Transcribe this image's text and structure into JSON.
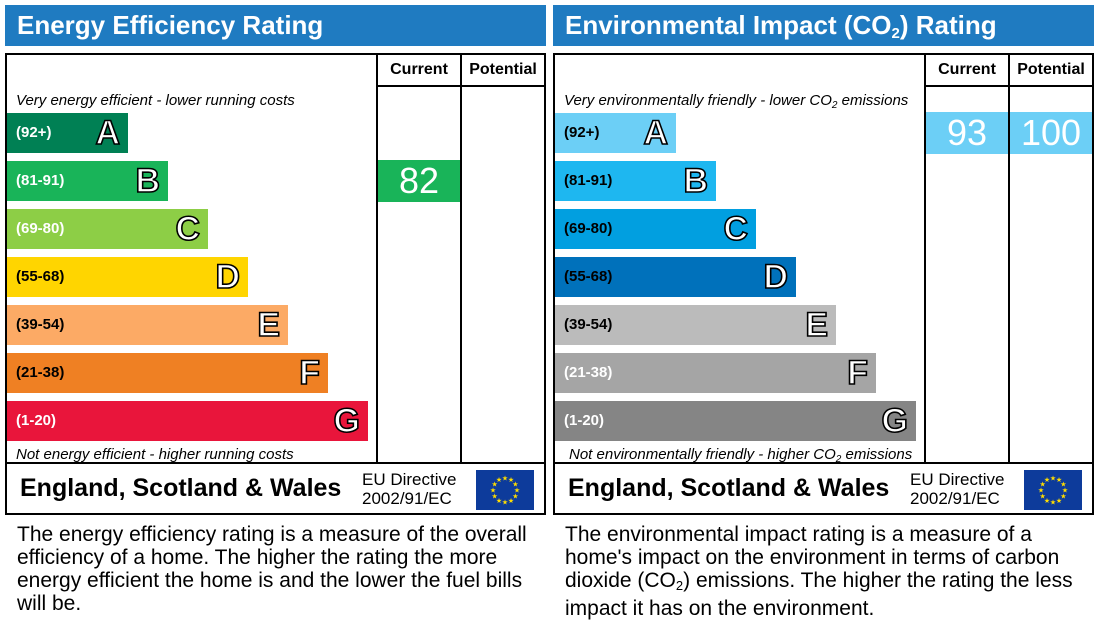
{
  "chart_data": [
    {
      "type": "table",
      "title": "Energy Efficiency Rating",
      "columns": [
        "Current",
        "Potential"
      ],
      "top_note": "Very energy efficient - lower running costs",
      "bottom_note": "Not energy efficient - higher running costs",
      "bands": [
        {
          "letter": "A",
          "range": "(92+)",
          "color": "#008054"
        },
        {
          "letter": "B",
          "range": "(81-91)",
          "color": "#19b459"
        },
        {
          "letter": "C",
          "range": "(69-80)",
          "color": "#8dce46"
        },
        {
          "letter": "D",
          "range": "(55-68)",
          "color": "#ffd500"
        },
        {
          "letter": "E",
          "range": "(39-54)",
          "color": "#fcaa65"
        },
        {
          "letter": "F",
          "range": "(21-38)",
          "color": "#ef8023"
        },
        {
          "letter": "G",
          "range": "(1-20)",
          "color": "#e9153b"
        }
      ],
      "current": {
        "value": 82,
        "band": "B",
        "color": "#19b459"
      },
      "potential": null,
      "footer_region": "England, Scotland & Wales",
      "footer_directive_line1": "EU Directive",
      "footer_directive_line2": "2002/91/EC",
      "description": "The energy efficiency rating is a measure of the overall efficiency of a home. The higher the rating the more energy efficient the home is and the lower the fuel bills will be."
    },
    {
      "type": "table",
      "title_main": "Environmental Impact (CO",
      "title_sub": "2",
      "title_tail": ") Rating",
      "columns": [
        "Current",
        "Potential"
      ],
      "top_note_main": "Very environmentally friendly - lower CO",
      "top_note_sub": "2",
      "top_note_tail": " emissions",
      "bottom_note_main": "Not environmentally friendly - higher CO",
      "bottom_note_sub": "2",
      "bottom_note_tail": " emissions",
      "bands": [
        {
          "letter": "A",
          "range": "(92+)",
          "color": "#6ccff6"
        },
        {
          "letter": "B",
          "range": "(81-91)",
          "color": "#1eb7f0"
        },
        {
          "letter": "C",
          "range": "(69-80)",
          "color": "#019fe0"
        },
        {
          "letter": "D",
          "range": "(55-68)",
          "color": "#0071bb"
        },
        {
          "letter": "E",
          "range": "(39-54)",
          "color": "#bbbbbb"
        },
        {
          "letter": "F",
          "range": "(21-38)",
          "color": "#a5a5a5"
        },
        {
          "letter": "G",
          "range": "(1-20)",
          "color": "#858585"
        }
      ],
      "current": {
        "value": 93,
        "band": "A",
        "color": "#6ccff6"
      },
      "potential": {
        "value": 100,
        "band": "A",
        "color": "#6ccff6"
      },
      "footer_region": "England, Scotland & Wales",
      "footer_directive_line1": "EU Directive",
      "footer_directive_line2": "2002/91/EC",
      "description_main": "The environmental impact rating is a measure of a home's impact on the environment in terms of carbon dioxide (CO",
      "description_sub": "2",
      "description_tail": ") emissions. The higher the rating the less impact it has on the environment."
    }
  ]
}
